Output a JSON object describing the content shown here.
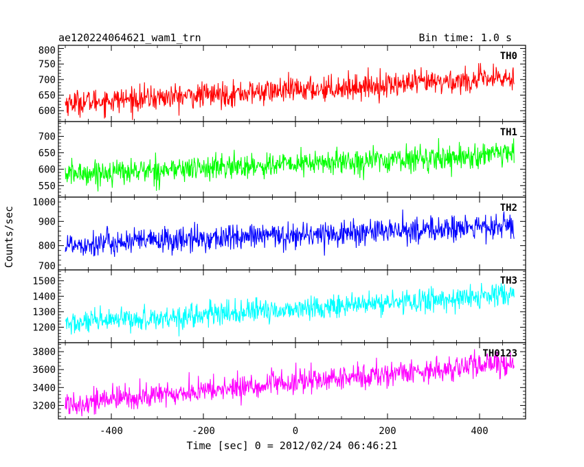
{
  "header": {
    "title": "ae120224064621_wam1_trn",
    "bin_time": "Bin time: 1.0 s"
  },
  "chart_data": {
    "type": "line",
    "title": "ae120224064621_wam1_trn",
    "subtitle": "Bin time: 1.0 s",
    "xlabel": "Time [sec] 0 = 2012/02/24 06:46:21",
    "ylabel": "Counts/sec",
    "xlim": [
      -515,
      500
    ],
    "x_range_data": [
      -500,
      475
    ],
    "xticks": [
      -400,
      -200,
      0,
      200,
      400
    ],
    "grid": false,
    "legend": "none",
    "panels": [
      {
        "name": "TH0",
        "color": "#ff0000",
        "ylim": [
          565,
          810
        ],
        "yticks": [
          600,
          650,
          700,
          750,
          800
        ],
        "trend": {
          "start": 625,
          "end": 705
        },
        "noise_sd": 20,
        "y_min": 570,
        "y_max": 810
      },
      {
        "name": "TH1",
        "color": "#00ff00",
        "ylim": [
          515,
          745
        ],
        "yticks": [
          550,
          600,
          650,
          700
        ],
        "trend": {
          "start": 585,
          "end": 645
        },
        "noise_sd": 19,
        "y_min": 520,
        "y_max": 735
      },
      {
        "name": "TH2",
        "color": "#0000ff",
        "ylim": [
          700,
          1000
        ],
        "yticks": [
          700,
          800,
          900,
          1000
        ],
        "trend": {
          "start": 805,
          "end": 880
        },
        "noise_sd": 27,
        "y_min": 705,
        "y_max": 1000
      },
      {
        "name": "TH3",
        "color": "#00ffff",
        "ylim": [
          1100,
          1570
        ],
        "yticks": [
          1200,
          1300,
          1400,
          1500
        ],
        "trend": {
          "start": 1220,
          "end": 1410
        },
        "noise_sd": 38,
        "y_min": 1120,
        "y_max": 1560
      },
      {
        "name": "TH0123",
        "color": "#ff00ff",
        "ylim": [
          3050,
          3900
        ],
        "yticks": [
          3200,
          3400,
          3600,
          3800
        ],
        "trend": {
          "start": 3220,
          "end": 3680
        },
        "noise_sd": 70,
        "y_min": 3080,
        "y_max": 3870
      }
    ]
  }
}
